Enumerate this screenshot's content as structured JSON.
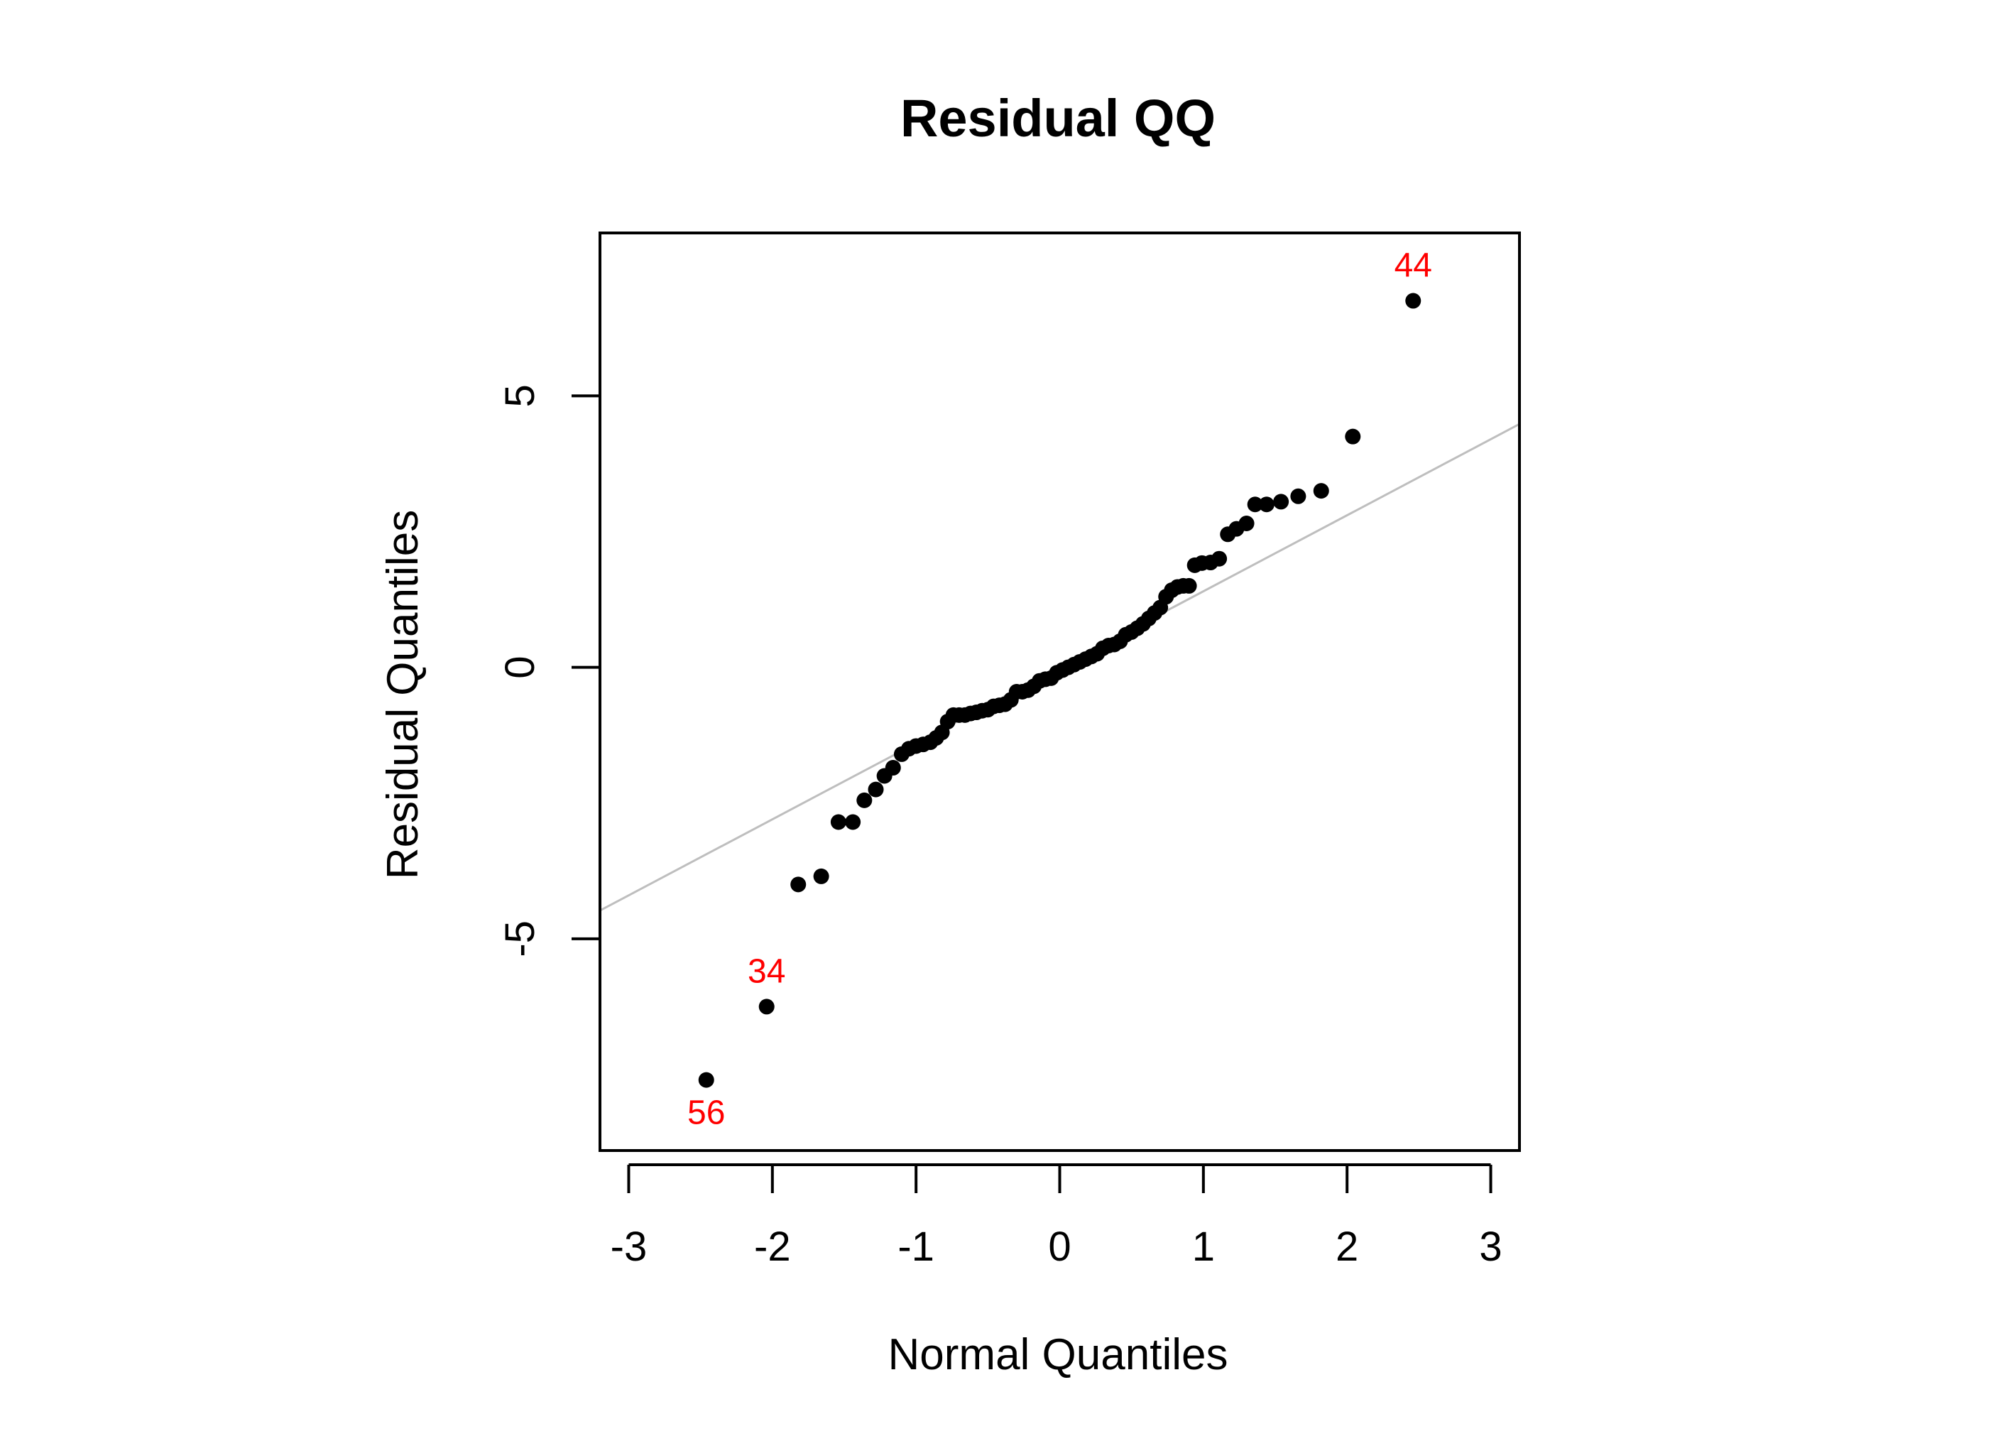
{
  "chart_data": {
    "type": "scatter",
    "title": "Residual QQ",
    "xlabel": "Normal Quantiles",
    "ylabel": "Residual Quantiles",
    "xlim": [
      -3.2,
      3.2
    ],
    "ylim": [
      -8.9,
      8.0
    ],
    "xticks": [
      -3,
      -2,
      -1,
      0,
      1,
      2,
      3
    ],
    "yticks": [
      -5,
      0,
      5
    ],
    "reference_line": {
      "intercept": 0.0,
      "slope": 1.4,
      "color": "#bebebe"
    },
    "point_color": "#000000",
    "label_color": "#ff0000",
    "series": [
      {
        "values": [
          {
            "x": -2.46,
            "y": -7.6
          },
          {
            "x": -2.04,
            "y": -6.25
          },
          {
            "x": -1.82,
            "y": -4.0
          },
          {
            "x": -1.66,
            "y": -3.85
          },
          {
            "x": -1.54,
            "y": -2.85
          },
          {
            "x": -1.44,
            "y": -2.85
          },
          {
            "x": -1.36,
            "y": -2.45
          },
          {
            "x": -1.28,
            "y": -2.25
          },
          {
            "x": -1.22,
            "y": -2.0
          },
          {
            "x": -1.16,
            "y": -1.85
          },
          {
            "x": -1.1,
            "y": -1.6
          },
          {
            "x": -1.05,
            "y": -1.5
          },
          {
            "x": -1.0,
            "y": -1.45
          },
          {
            "x": -0.95,
            "y": -1.42
          },
          {
            "x": -0.9,
            "y": -1.38
          },
          {
            "x": -0.86,
            "y": -1.3
          },
          {
            "x": -0.82,
            "y": -1.2
          },
          {
            "x": -0.78,
            "y": -1.0
          },
          {
            "x": -0.74,
            "y": -0.88
          },
          {
            "x": -0.7,
            "y": -0.88
          },
          {
            "x": -0.66,
            "y": -0.88
          },
          {
            "x": -0.62,
            "y": -0.85
          },
          {
            "x": -0.58,
            "y": -0.83
          },
          {
            "x": -0.54,
            "y": -0.8
          },
          {
            "x": -0.5,
            "y": -0.78
          },
          {
            "x": -0.46,
            "y": -0.72
          },
          {
            "x": -0.42,
            "y": -0.7
          },
          {
            "x": -0.38,
            "y": -0.68
          },
          {
            "x": -0.34,
            "y": -0.6
          },
          {
            "x": -0.3,
            "y": -0.45
          },
          {
            "x": -0.26,
            "y": -0.45
          },
          {
            "x": -0.22,
            "y": -0.42
          },
          {
            "x": -0.18,
            "y": -0.35
          },
          {
            "x": -0.14,
            "y": -0.25
          },
          {
            "x": -0.1,
            "y": -0.22
          },
          {
            "x": -0.06,
            "y": -0.2
          },
          {
            "x": -0.02,
            "y": -0.1
          },
          {
            "x": 0.02,
            "y": -0.05
          },
          {
            "x": 0.06,
            "y": 0.0
          },
          {
            "x": 0.1,
            "y": 0.05
          },
          {
            "x": 0.14,
            "y": 0.1
          },
          {
            "x": 0.18,
            "y": 0.15
          },
          {
            "x": 0.22,
            "y": 0.2
          },
          {
            "x": 0.26,
            "y": 0.25
          },
          {
            "x": 0.3,
            "y": 0.35
          },
          {
            "x": 0.34,
            "y": 0.4
          },
          {
            "x": 0.38,
            "y": 0.42
          },
          {
            "x": 0.42,
            "y": 0.48
          },
          {
            "x": 0.46,
            "y": 0.6
          },
          {
            "x": 0.5,
            "y": 0.65
          },
          {
            "x": 0.54,
            "y": 0.72
          },
          {
            "x": 0.58,
            "y": 0.8
          },
          {
            "x": 0.62,
            "y": 0.9
          },
          {
            "x": 0.66,
            "y": 1.0
          },
          {
            "x": 0.7,
            "y": 1.1
          },
          {
            "x": 0.74,
            "y": 1.3
          },
          {
            "x": 0.78,
            "y": 1.42
          },
          {
            "x": 0.82,
            "y": 1.48
          },
          {
            "x": 0.86,
            "y": 1.5
          },
          {
            "x": 0.9,
            "y": 1.5
          },
          {
            "x": 0.94,
            "y": 1.88
          },
          {
            "x": 0.99,
            "y": 1.92
          },
          {
            "x": 1.05,
            "y": 1.93
          },
          {
            "x": 1.11,
            "y": 2.0
          },
          {
            "x": 1.17,
            "y": 2.45
          },
          {
            "x": 1.23,
            "y": 2.55
          },
          {
            "x": 1.3,
            "y": 2.65
          },
          {
            "x": 1.36,
            "y": 3.0
          },
          {
            "x": 1.44,
            "y": 3.0
          },
          {
            "x": 1.54,
            "y": 3.05
          },
          {
            "x": 1.66,
            "y": 3.15
          },
          {
            "x": 1.82,
            "y": 3.25
          },
          {
            "x": 2.04,
            "y": 4.25
          },
          {
            "x": 2.46,
            "y": 6.75
          }
        ]
      }
    ],
    "labeled_points": [
      {
        "label": "44",
        "x": 2.46,
        "y": 6.75,
        "position": "above"
      },
      {
        "label": "34",
        "x": -2.04,
        "y": -6.25,
        "position": "above"
      },
      {
        "label": "56",
        "x": -2.46,
        "y": -7.6,
        "position": "below"
      }
    ]
  }
}
